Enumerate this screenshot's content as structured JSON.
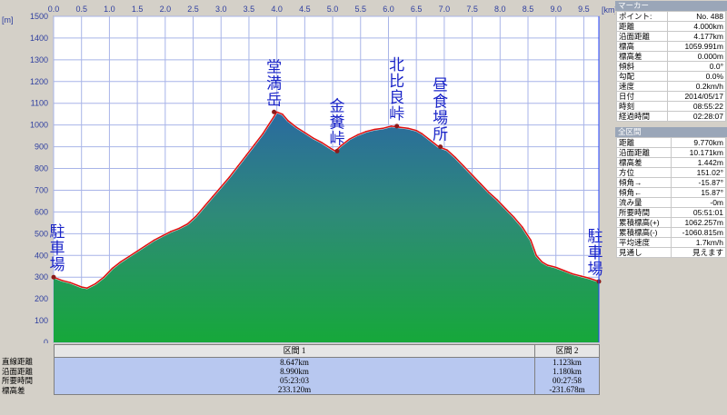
{
  "chart_data": {
    "type": "area",
    "xlim": [
      0.0,
      9.77
    ],
    "ylim": [
      0,
      1500
    ],
    "x_unit": "[km]",
    "y_unit": "[m]",
    "x_ticks": [
      0.0,
      0.5,
      1.0,
      1.5,
      2.0,
      2.5,
      3.0,
      3.5,
      4.0,
      4.5,
      5.0,
      5.5,
      6.0,
      6.5,
      7.0,
      7.5,
      8.0,
      8.5,
      9.0,
      9.5
    ],
    "y_ticks": [
      0,
      100,
      200,
      300,
      400,
      500,
      600,
      700,
      800,
      900,
      1000,
      1100,
      1200,
      1300,
      1400,
      1500
    ],
    "grid": true,
    "series": [
      {
        "x": [
          0.0,
          0.15,
          0.3,
          0.5,
          0.6,
          0.75,
          0.9,
          1.05,
          1.2,
          1.35,
          1.5,
          1.65,
          1.8,
          1.95,
          2.1,
          2.25,
          2.4,
          2.55,
          2.7,
          2.85,
          3.0,
          3.15,
          3.3,
          3.45,
          3.6,
          3.75,
          3.85,
          3.95,
          4.0,
          4.1,
          4.2,
          4.35,
          4.5,
          4.65,
          4.8,
          4.95,
          5.05,
          5.15,
          5.3,
          5.45,
          5.6,
          5.75,
          5.9,
          6.05,
          6.2,
          6.35,
          6.5,
          6.6,
          6.75,
          6.9,
          7.05,
          7.2,
          7.35,
          7.5,
          7.65,
          7.8,
          7.95,
          8.1,
          8.25,
          8.4,
          8.55,
          8.65,
          8.75,
          8.85,
          9.0,
          9.15,
          9.3,
          9.45,
          9.6,
          9.77
        ],
        "y": [
          300,
          285,
          275,
          255,
          250,
          270,
          300,
          340,
          370,
          395,
          420,
          445,
          470,
          490,
          510,
          525,
          545,
          580,
          625,
          670,
          715,
          760,
          810,
          860,
          910,
          960,
          1000,
          1040,
          1060,
          1050,
          1020,
          990,
          965,
          940,
          920,
          895,
          880,
          905,
          935,
          955,
          970,
          980,
          985,
          995,
          990,
          985,
          975,
          960,
          930,
          900,
          885,
          850,
          810,
          770,
          730,
          690,
          655,
          615,
          575,
          530,
          470,
          400,
          370,
          355,
          345,
          330,
          315,
          305,
          295,
          280
        ]
      }
    ],
    "annotations": [
      {
        "x": 0.0,
        "y": 300,
        "text": "駐車場"
      },
      {
        "x": 3.95,
        "y": 1060,
        "text": "堂満岳"
      },
      {
        "x": 5.08,
        "y": 880,
        "text": "金糞峠"
      },
      {
        "x": 6.15,
        "y": 995,
        "text": "北比良峠"
      },
      {
        "x": 6.93,
        "y": 900,
        "text": "昼食場所"
      },
      {
        "x": 9.77,
        "y": 280,
        "text": "駐車場"
      }
    ]
  },
  "marker_panel": {
    "title": "マーカー",
    "rows": [
      {
        "label": "ポイント:",
        "value": "No. 488"
      },
      {
        "label": "距離",
        "value": "4.000km"
      },
      {
        "label": "沿面距離",
        "value": "4.177km"
      },
      {
        "label": "標高",
        "value": "1059.991m"
      },
      {
        "label": "標高差",
        "value": "0.000m"
      },
      {
        "label": "傾斜",
        "value": "0.0°"
      },
      {
        "label": "勾配",
        "value": "0.0%"
      },
      {
        "label": "速度",
        "value": "0.2km/h"
      },
      {
        "label": "日付",
        "value": "2014/05/17"
      },
      {
        "label": "時刻",
        "value": "08:55:22"
      },
      {
        "label": "経過時間",
        "value": "02:28:07"
      }
    ]
  },
  "section_panel": {
    "title": "全区間",
    "rows": [
      {
        "label": "距離",
        "value": "9.770km"
      },
      {
        "label": "沿面距離",
        "value": "10.171km"
      },
      {
        "label": "標高差",
        "value": "1.442m"
      },
      {
        "label": "方位",
        "value": "151.02°"
      },
      {
        "label": "傾角→",
        "value": "-15.87°"
      },
      {
        "label": "傾角←",
        "value": "15.87°"
      },
      {
        "label": "流み量",
        "value": "-0m"
      },
      {
        "label": "所要時間",
        "value": "05:51:01"
      },
      {
        "label": "累積標高(+)",
        "value": "1062.257m"
      },
      {
        "label": "累積標高(-)",
        "value": "-1060.815m"
      },
      {
        "label": "平均速度",
        "value": "1.7km/h"
      },
      {
        "label": "見通し",
        "value": "見えます"
      }
    ]
  },
  "sections": {
    "headers": [
      "区間 1",
      "区間 2"
    ],
    "row_labels": [
      "直線距離",
      "沿面距離",
      "所要時間",
      "標高差"
    ],
    "section1": [
      "8.647km",
      "8.990km",
      "05:23:03",
      "233.120m"
    ],
    "section2": [
      "1.123km",
      "1.180km",
      "00:27:58",
      "-231.678m"
    ]
  }
}
